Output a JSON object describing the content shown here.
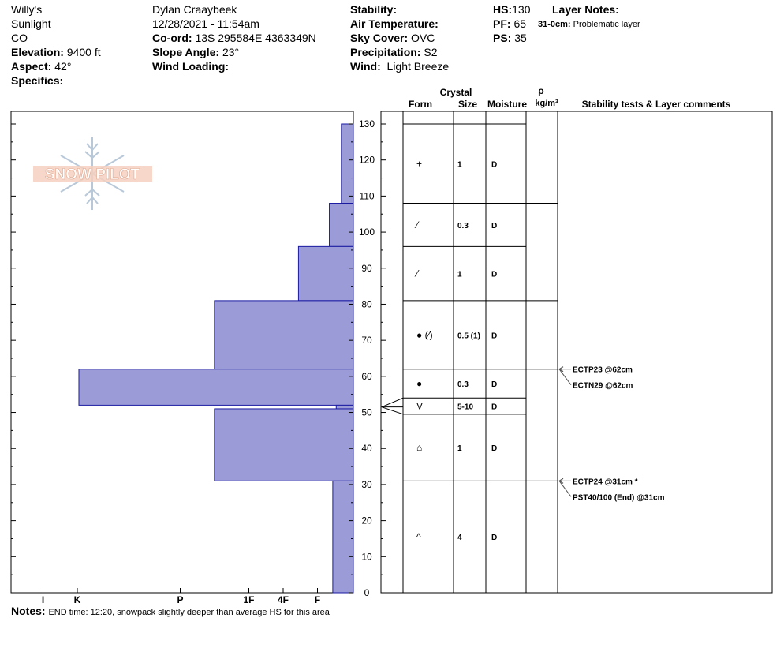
{
  "header": {
    "site": "Willy's",
    "location": "Sunlight",
    "state": "CO",
    "elevation_label": "Elevation:",
    "elevation": "9400 ft",
    "aspect_label": "Aspect:",
    "aspect": "42°",
    "specifics_label": "Specifics:",
    "observer": "Dylan Craaybeek",
    "datetime": "12/28/2021 - 11:54am",
    "coord_label": "Co-ord:",
    "coord": "13S 295584E 4363349N",
    "slope_label": "Slope Angle:",
    "slope": "23°",
    "wind_loading_label": "Wind Loading:",
    "stability_label": "Stability:",
    "air_temp_label": "Air Temperature:",
    "sky_label": "Sky Cover:",
    "sky": "OVC",
    "precip_label": "Precipitation:",
    "precip": "S2",
    "wind_label": "Wind:",
    "wind": "Light Breeze",
    "hs_label": "HS:",
    "hs": "130",
    "pf_label": "PF:",
    "pf": "65",
    "ps_label": "PS:",
    "ps": "35",
    "layer_notes_label": "Layer Notes:",
    "layer_note_depth": "31-0cm:",
    "layer_note_text": "Problematic layer"
  },
  "logo_text": "SNOW PILOT",
  "notes": {
    "label": "Notes:",
    "text": "END time: 12:20, snowpack slightly deeper than average HS for this area"
  },
  "chart_data": {
    "type": "bar",
    "orientation": "horizontal",
    "description_axis": "height (cm) vs hand hardness",
    "ylim": [
      0,
      130
    ],
    "yticks": [
      0,
      10,
      20,
      30,
      40,
      50,
      60,
      70,
      80,
      90,
      100,
      110,
      120,
      130
    ],
    "hardness_ticks": [
      "I",
      "K",
      "P",
      "1F",
      "4F",
      "F"
    ],
    "hardness_scale": {
      "F": 1,
      "4F": 2,
      "1F": 3,
      "P": 5,
      "K": 8,
      "I": 9
    },
    "hardness_max": 10,
    "colors": {
      "bar_fill": "#9b9bd8",
      "bar_stroke": "#1a1aa0"
    },
    "layers": [
      {
        "top": 130,
        "bottom": 108,
        "hardness": 0.35
      },
      {
        "top": 108,
        "bottom": 96,
        "hardness": 0.7
      },
      {
        "top": 96,
        "bottom": 81,
        "hardness": 1.6
      },
      {
        "top": 81,
        "bottom": 62,
        "hardness": 4.05
      },
      {
        "top": 62,
        "bottom": 52,
        "hardness": 8.0
      },
      {
        "top": 52,
        "bottom": 51,
        "hardness": 0.5
      },
      {
        "top": 51,
        "bottom": 31,
        "hardness": 4.05
      },
      {
        "top": 31,
        "bottom": 0,
        "hardness": 0.6
      }
    ],
    "columns": {
      "crystal_label": "Crystal",
      "form_label": "Form",
      "size_label": "Size",
      "moisture_label": "Moisture",
      "density_label": "ρ",
      "density_unit": "kg/m³",
      "comments_label": "Stability tests & Layer comments"
    },
    "table_layers": [
      {
        "top": 130,
        "bottom": 108,
        "form": "+",
        "size": "1",
        "moisture": "D"
      },
      {
        "top": 108,
        "bottom": 96,
        "form": "⁄",
        "size": "0.3",
        "moisture": "D"
      },
      {
        "top": 96,
        "bottom": 81,
        "form": "⁄",
        "size": "1",
        "moisture": "D"
      },
      {
        "top": 81,
        "bottom": 62,
        "form": "● (⁄)",
        "size": "0.5 (1)",
        "moisture": "D"
      },
      {
        "top": 62,
        "bottom": 54,
        "form": "●",
        "size": "0.3",
        "moisture": "D"
      },
      {
        "top": 54,
        "bottom": 49.5,
        "form": "V",
        "size": "5-10",
        "moisture": "D"
      },
      {
        "top": 49.5,
        "bottom": 31,
        "form": "⌂",
        "size": "1",
        "moisture": "D"
      },
      {
        "top": 31,
        "bottom": 0,
        "form": "^",
        "size": "4",
        "moisture": "D"
      }
    ],
    "tests": [
      {
        "depth": 62,
        "text": "ECTP23 @62cm"
      },
      {
        "depth": 62,
        "text": "ECTN29 @62cm"
      },
      {
        "depth": 31,
        "text": "ECTP24 @31cm  *"
      },
      {
        "depth": 31,
        "text": "PST40/100 (End) @31cm"
      }
    ]
  }
}
